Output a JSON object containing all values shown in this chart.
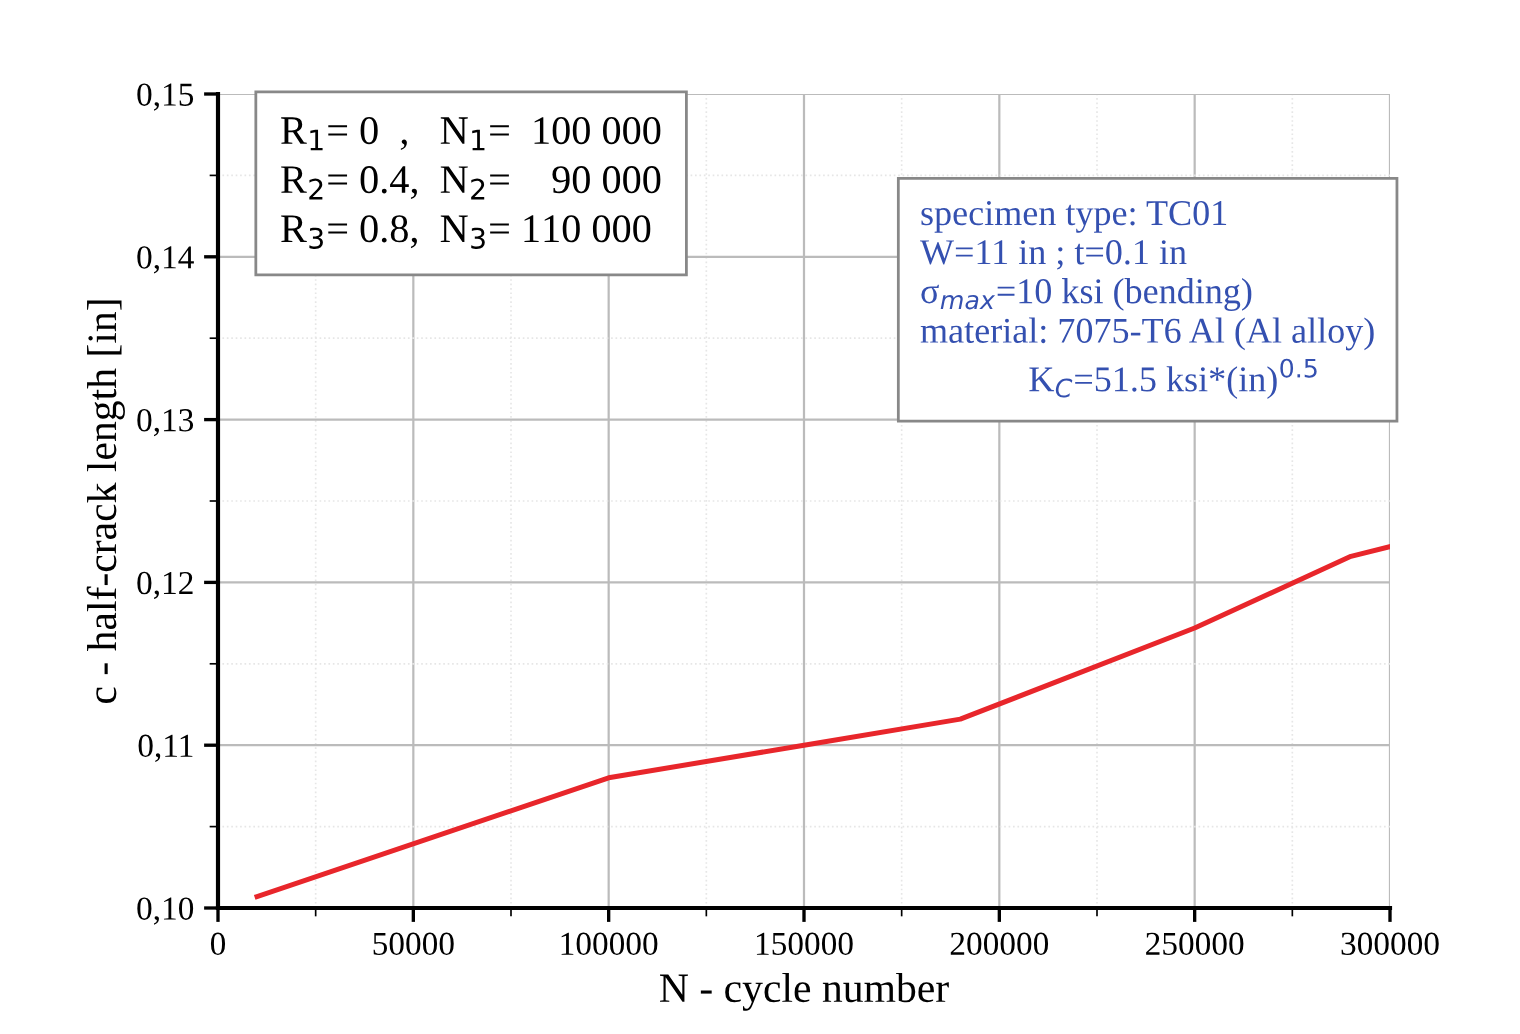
{
  "chart_data": {
    "type": "line",
    "xlabel": "N - cycle number",
    "ylabel": "c - half-crack length [in]",
    "x": [
      10000,
      100000,
      150000,
      190000,
      250000,
      290000,
      300000
    ],
    "series": [
      {
        "color": "#e8262b",
        "values": [
          0.1007,
          0.108,
          0.11,
          0.1116,
          0.1172,
          0.1216,
          0.1222
        ]
      }
    ],
    "xlim": [
      0,
      300000
    ],
    "xticks": [
      0,
      50000,
      100000,
      150000,
      200000,
      250000,
      300000
    ],
    "ylim": [
      0.1,
      0.15
    ],
    "yticks": [
      {
        "value": 0.1,
        "label": "0,10"
      },
      {
        "value": 0.11,
        "label": "0,11"
      },
      {
        "value": 0.12,
        "label": "0,12"
      },
      {
        "value": 0.13,
        "label": "0,13"
      },
      {
        "value": 0.14,
        "label": "0,14"
      },
      {
        "value": 0.15,
        "label": "0,15"
      }
    ],
    "grid": true,
    "marker": "none",
    "line_style": "solid",
    "annotations": [
      "R$_{1}$= 0  ,   N$_{1}$=  100 000\nR$_{2}$= 0.4,  N$_{2}$=    90 000\nR$_{3}$= 0.8,  N$_{3}$= 110 000",
      "specimen type: TC01\nW=11 in ; t=0.1 in\nσ$_{max}$=10 ksi (bending)\nmaterial: 7075-T6 Al (Al alloy)\n            K$_{C}$=51.5 ksi*(in)$^{0.5}$"
    ]
  }
}
